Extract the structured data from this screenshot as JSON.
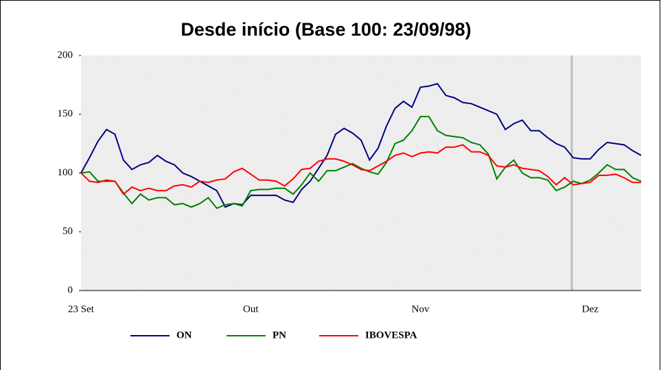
{
  "chart_data": {
    "type": "line",
    "title": "Desde início (Base 100: 23/09/98)",
    "categories": [
      "23 Set",
      null,
      null,
      null,
      null,
      null,
      null,
      null,
      null,
      null,
      null,
      null,
      null,
      null,
      null,
      null,
      null,
      null,
      null,
      null,
      "Out",
      null,
      null,
      null,
      null,
      null,
      null,
      null,
      null,
      null,
      null,
      null,
      null,
      null,
      null,
      null,
      null,
      null,
      null,
      null,
      "Nov",
      null,
      null,
      null,
      null,
      null,
      null,
      null,
      null,
      null,
      null,
      null,
      null,
      null,
      null,
      null,
      null,
      null,
      null,
      null,
      "Dez",
      null,
      null,
      null,
      null,
      null,
      null
    ],
    "series": [
      {
        "name": "ON",
        "color": "#000080",
        "values": [
          100,
          113,
          127,
          137,
          133,
          111,
          103,
          107,
          109,
          115,
          110,
          107,
          100,
          97,
          93,
          89,
          85,
          71,
          74,
          73,
          81,
          81,
          81,
          81,
          77,
          75,
          86,
          93,
          104,
          115,
          133,
          138,
          134,
          128,
          111,
          121,
          140,
          155,
          161,
          156,
          173,
          174,
          176,
          166,
          164,
          160,
          159,
          156,
          153,
          150,
          137,
          142,
          145,
          136,
          136,
          130,
          125,
          122,
          113,
          112,
          112,
          120,
          126,
          125,
          124,
          119,
          115
        ]
      },
      {
        "name": "PN",
        "color": "#008000",
        "values": [
          100,
          101,
          93,
          93,
          93,
          83,
          74,
          82,
          77,
          79,
          79,
          73,
          74,
          71,
          74,
          79,
          70,
          73,
          74,
          72,
          85,
          86,
          86,
          87,
          87,
          82,
          90,
          100,
          93,
          102,
          102,
          105,
          108,
          104,
          101,
          99,
          109,
          125,
          128,
          136,
          148,
          148,
          136,
          132,
          131,
          130,
          126,
          124,
          116,
          95,
          105,
          111,
          100,
          96,
          96,
          94,
          85,
          88,
          93,
          91,
          94,
          100,
          107,
          103,
          103,
          96,
          93
        ]
      },
      {
        "name": "IBOVESPA",
        "color": "#ff0000",
        "values": [
          100,
          93,
          92,
          94,
          93,
          82,
          88,
          85,
          87,
          85,
          85,
          89,
          90,
          88,
          93,
          92,
          94,
          95,
          101,
          104,
          99,
          94,
          94,
          93,
          89,
          95,
          103,
          104,
          110,
          112,
          112,
          110,
          107,
          103,
          102,
          106,
          110,
          115,
          117,
          114,
          117,
          118,
          117,
          122,
          122,
          124,
          118,
          118,
          115,
          106,
          105,
          107,
          104,
          103,
          102,
          97,
          90,
          96,
          90,
          91,
          92,
          98,
          98,
          99,
          96,
          92,
          92
        ]
      }
    ],
    "ylim": [
      0,
      200
    ],
    "yticks": [
      0,
      50,
      100,
      150,
      200
    ]
  }
}
